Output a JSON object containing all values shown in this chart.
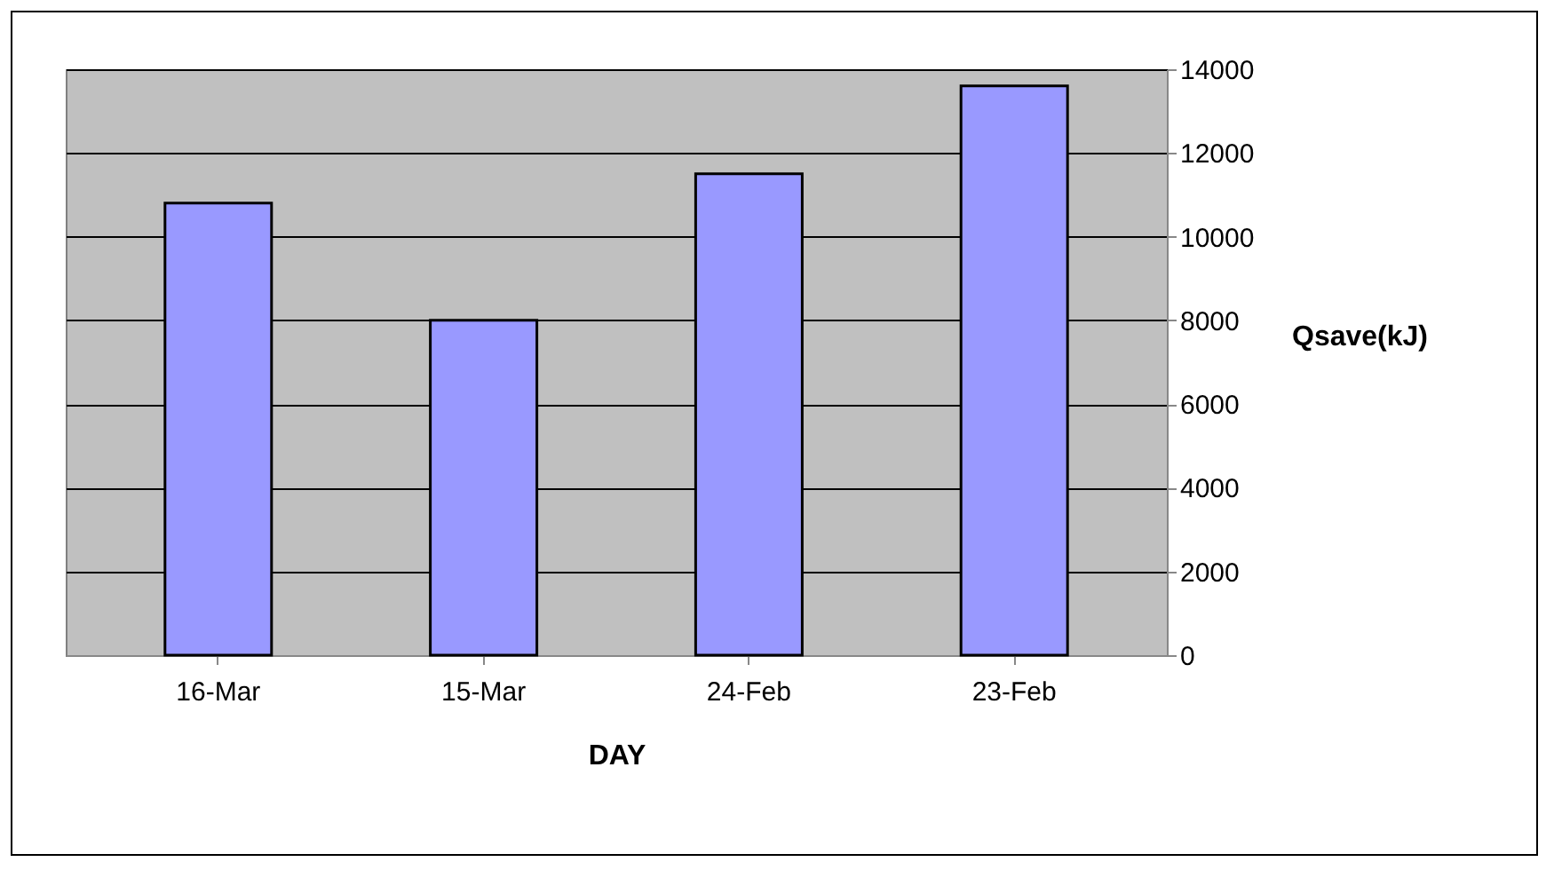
{
  "chart_data": {
    "type": "bar",
    "xlabel": "DAY",
    "ylabel": "Qsave(kJ)",
    "categories": [
      "16-Mar",
      "15-Mar",
      "24-Feb",
      "23-Feb"
    ],
    "values": [
      10800,
      8000,
      11500,
      13600
    ],
    "color": "#9999ff",
    "ylim": [
      0,
      14000
    ],
    "yticks": [
      0,
      2000,
      4000,
      6000,
      8000,
      10000,
      12000,
      14000
    ],
    "grid": "y"
  }
}
